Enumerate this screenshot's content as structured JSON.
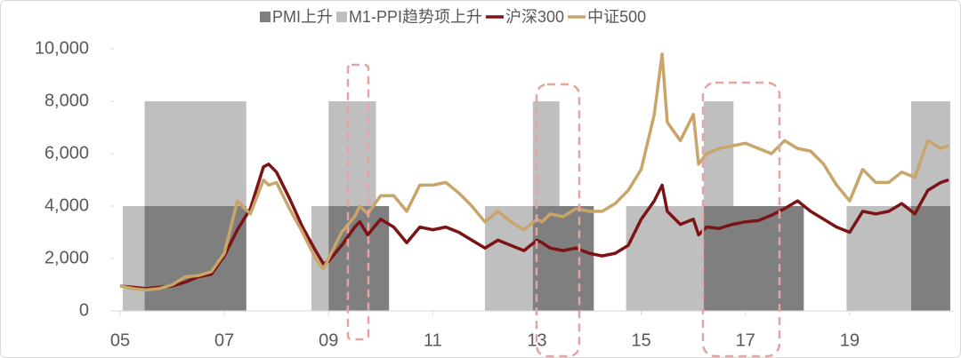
{
  "chart_data": {
    "type": "line",
    "x": [
      2005.0,
      2005.25,
      2005.5,
      2005.75,
      2006.0,
      2006.25,
      2006.5,
      2006.75,
      2007.0,
      2007.25,
      2007.5,
      2007.75,
      2007.85,
      2008.0,
      2008.25,
      2008.5,
      2008.75,
      2008.9,
      2009.0,
      2009.25,
      2009.5,
      2009.6,
      2009.75,
      2010.0,
      2010.25,
      2010.5,
      2010.75,
      2011.0,
      2011.25,
      2011.5,
      2011.75,
      2012.0,
      2012.25,
      2012.5,
      2012.75,
      2013.0,
      2013.1,
      2013.25,
      2013.5,
      2013.75,
      2014.0,
      2014.25,
      2014.5,
      2014.75,
      2015.0,
      2015.25,
      2015.4,
      2015.5,
      2015.75,
      2016.0,
      2016.1,
      2016.25,
      2016.5,
      2016.75,
      2017.0,
      2017.25,
      2017.5,
      2017.75,
      2018.0,
      2018.25,
      2018.5,
      2018.75,
      2019.0,
      2019.25,
      2019.5,
      2019.75,
      2020.0,
      2020.25,
      2020.5,
      2020.75,
      2020.9
    ],
    "series": [
      {
        "name": "沪深300",
        "color": "#7b1416",
        "values": [
          950,
          900,
          850,
          900,
          950,
          1100,
          1300,
          1400,
          2100,
          3100,
          3900,
          5500,
          5600,
          5300,
          4300,
          3200,
          2300,
          1800,
          1900,
          2500,
          3200,
          3400,
          2900,
          3500,
          3200,
          2600,
          3200,
          3100,
          3200,
          3000,
          2700,
          2400,
          2700,
          2500,
          2300,
          2700,
          2600,
          2400,
          2300,
          2400,
          2200,
          2100,
          2200,
          2500,
          3500,
          4200,
          4800,
          3800,
          3300,
          3500,
          2900,
          3200,
          3150,
          3300,
          3400,
          3450,
          3650,
          3900,
          4200,
          3800,
          3500,
          3200,
          3000,
          3800,
          3700,
          3800,
          4100,
          3700,
          4600,
          4900,
          5000
        ]
      },
      {
        "name": "中证500",
        "color": "#c9a56a",
        "values": [
          950,
          850,
          800,
          850,
          1000,
          1300,
          1350,
          1500,
          2200,
          4200,
          3700,
          5000,
          4800,
          4900,
          3900,
          3000,
          2000,
          1600,
          2000,
          3000,
          3600,
          4000,
          3700,
          4400,
          4400,
          3800,
          4800,
          4800,
          4900,
          4500,
          4000,
          3400,
          3800,
          3400,
          3100,
          3500,
          3400,
          3700,
          3600,
          3900,
          3800,
          3800,
          4100,
          4600,
          5400,
          7500,
          9800,
          7200,
          6500,
          7500,
          5600,
          6000,
          6200,
          6300,
          6400,
          6200,
          6000,
          6500,
          6200,
          6100,
          5600,
          4800,
          4200,
          5400,
          4900,
          4900,
          5300,
          5100,
          6500,
          6200,
          6300
        ]
      }
    ],
    "regions": [
      {
        "name": "PMI上升",
        "color": "#7f7f7f",
        "spans": [
          {
            "start": 2005.47,
            "end": 2007.42,
            "value": 4000
          },
          {
            "start": 2009.0,
            "end": 2010.16,
            "value": 4000
          },
          {
            "start": 2012.92,
            "end": 2014.09,
            "value": 4000
          },
          {
            "start": 2016.2,
            "end": 2018.12,
            "value": 4000
          },
          {
            "start": 2020.18,
            "end": 2020.93,
            "value": 4000
          }
        ]
      },
      {
        "name": "M1-PPI趋势项上升",
        "color": "#bfbfbf",
        "spans": [
          {
            "start": 2005.05,
            "end": 2005.47,
            "value": 4000
          },
          {
            "start": 2005.47,
            "end": 2007.42,
            "value": 8000
          },
          {
            "start": 2008.67,
            "end": 2009.0,
            "value": 4000
          },
          {
            "start": 2009.0,
            "end": 2009.91,
            "value": 8000
          },
          {
            "start": 2012.0,
            "end": 2012.92,
            "value": 4000
          },
          {
            "start": 2012.92,
            "end": 2013.43,
            "value": 8000
          },
          {
            "start": 2014.71,
            "end": 2016.2,
            "value": 4000
          },
          {
            "start": 2016.2,
            "end": 2016.77,
            "value": 8000
          },
          {
            "start": 2018.94,
            "end": 2020.18,
            "value": 4000
          },
          {
            "start": 2020.18,
            "end": 2020.93,
            "value": 8000
          }
        ]
      }
    ],
    "xlim": [
      2004.88,
      2021.0
    ],
    "xticks": [
      {
        "value": 2005,
        "label": "05"
      },
      {
        "value": 2007,
        "label": "07"
      },
      {
        "value": 2009,
        "label": "09"
      },
      {
        "value": 2011,
        "label": "11"
      },
      {
        "value": 2013,
        "label": "13"
      },
      {
        "value": 2015,
        "label": "15"
      },
      {
        "value": 2017,
        "label": "17"
      },
      {
        "value": 2019,
        "label": "19"
      }
    ],
    "ylim": [
      0,
      10000
    ],
    "yticks": [
      0,
      {
        "value": 2000,
        "label": "2,000"
      },
      {
        "value": 4000,
        "label": "4,000"
      },
      {
        "value": 6000,
        "label": "6,000"
      },
      {
        "value": 8000,
        "label": "8,000"
      },
      {
        "value": 10000,
        "label": "10,000"
      }
    ]
  }
}
